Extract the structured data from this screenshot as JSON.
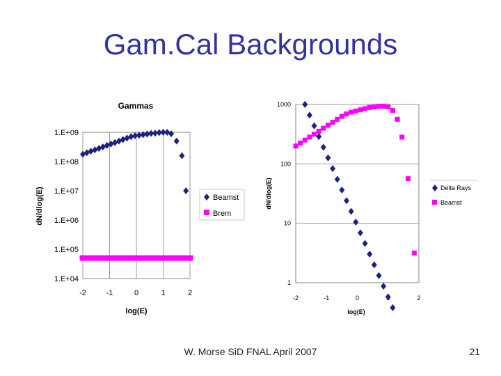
{
  "slide": {
    "title": "Gam.Cal Backgrounds",
    "footer": "W. Morse SiD FNAL April 2007",
    "page_number": "21"
  },
  "colors": {
    "title": "#333399",
    "navy": "#1a237e",
    "magenta": "#ff00ff",
    "grid": "#9a9a9a"
  },
  "chart_data": [
    {
      "type": "scatter",
      "title": "Gammas",
      "xlabel": "log(E)",
      "ylabel": "dN/dlog(E)",
      "yscale": "log",
      "xlim": [
        -2,
        2
      ],
      "ylim_exp": [
        4,
        9
      ],
      "x_ticks": [
        "-2",
        "-1",
        "0",
        "1",
        "2"
      ],
      "y_ticks": [
        "1.E+04",
        "1.E+05",
        "1.E+06",
        "1.E+07",
        "1.E+08",
        "1.E+09"
      ],
      "grid": "vertical",
      "legend_position": "right",
      "series": [
        {
          "name": "Beamst",
          "marker": "diamond",
          "color": "#1a237e",
          "x": [
            -2.0,
            -1.85,
            -1.7,
            -1.55,
            -1.4,
            -1.25,
            -1.1,
            -0.95,
            -0.8,
            -0.65,
            -0.5,
            -0.35,
            -0.2,
            -0.05,
            0.1,
            0.25,
            0.4,
            0.55,
            0.7,
            0.85,
            1.0,
            1.15,
            1.3,
            1.5,
            1.7,
            1.85
          ],
          "log10_y": [
            8.25,
            8.3,
            8.35,
            8.4,
            8.45,
            8.5,
            8.55,
            8.6,
            8.65,
            8.7,
            8.75,
            8.8,
            8.85,
            8.88,
            8.9,
            8.92,
            8.94,
            8.96,
            8.97,
            8.99,
            9.0,
            9.0,
            8.95,
            8.7,
            8.2,
            7.0
          ]
        },
        {
          "name": "Brem",
          "marker": "square",
          "color": "#ff00ff",
          "x": [
            -2.0,
            -1.8,
            -1.6,
            -1.4,
            -1.2,
            -1.0,
            -0.8,
            -0.6,
            -0.4,
            -0.2,
            0.0,
            0.2,
            0.4,
            0.6,
            0.8,
            1.0,
            1.2,
            1.4,
            1.6,
            1.8,
            2.0
          ],
          "log10_y": [
            4.7,
            4.7,
            4.7,
            4.7,
            4.7,
            4.7,
            4.7,
            4.7,
            4.7,
            4.7,
            4.7,
            4.7,
            4.7,
            4.7,
            4.7,
            4.7,
            4.7,
            4.7,
            4.7,
            4.7,
            4.7
          ]
        }
      ]
    },
    {
      "type": "scatter",
      "title": "",
      "xlabel": "log(E)",
      "ylabel": "dN/dlog(E)",
      "yscale": "log",
      "xlim": [
        -2,
        2
      ],
      "ylim": [
        1,
        1000
      ],
      "x_ticks": [
        "-2",
        "-1",
        "0",
        "1",
        "2"
      ],
      "y_ticks": [
        "1",
        "10",
        "100",
        "1000"
      ],
      "grid": "horizontal",
      "legend_position": "right",
      "series": [
        {
          "name": "Delta Rays",
          "marker": "diamond",
          "color": "#1a237e",
          "x": [
            -1.7,
            -1.55,
            -1.4,
            -1.25,
            -1.1,
            -0.95,
            -0.8,
            -0.65,
            -0.5,
            -0.35,
            -0.2,
            -0.05,
            0.1,
            0.25,
            0.4,
            0.55,
            0.7,
            0.85,
            1.0,
            1.15
          ],
          "log10_y": [
            3.0,
            2.82,
            2.64,
            2.46,
            2.28,
            2.1,
            1.92,
            1.74,
            1.56,
            1.38,
            1.2,
            1.02,
            0.84,
            0.66,
            0.48,
            0.3,
            0.12,
            -0.06,
            -0.24,
            -0.42
          ]
        },
        {
          "name": "Beamst",
          "marker": "square",
          "color": "#ff00ff",
          "x": [
            -2.0,
            -1.85,
            -1.7,
            -1.55,
            -1.4,
            -1.25,
            -1.1,
            -0.95,
            -0.8,
            -0.65,
            -0.5,
            -0.35,
            -0.2,
            -0.05,
            0.1,
            0.25,
            0.4,
            0.55,
            0.7,
            0.85,
            1.0,
            1.15,
            1.3,
            1.45,
            1.65,
            1.85
          ],
          "log10_y": [
            2.3,
            2.35,
            2.4,
            2.45,
            2.5,
            2.55,
            2.6,
            2.65,
            2.7,
            2.75,
            2.8,
            2.84,
            2.87,
            2.89,
            2.91,
            2.93,
            2.95,
            2.96,
            2.97,
            2.97,
            2.96,
            2.9,
            2.75,
            2.45,
            1.75,
            0.5
          ]
        }
      ]
    }
  ]
}
